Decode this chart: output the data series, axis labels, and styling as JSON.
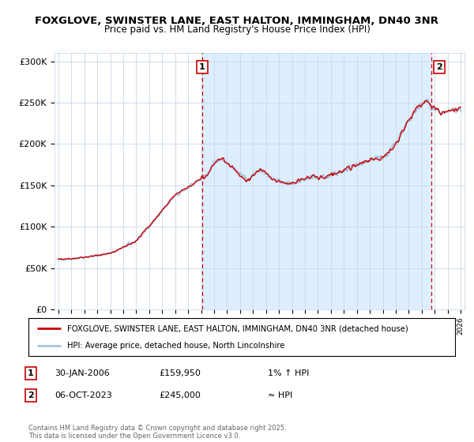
{
  "title_line1": "FOXGLOVE, SWINSTER LANE, EAST HALTON, IMMINGHAM, DN40 3NR",
  "title_line2": "Price paid vs. HM Land Registry's House Price Index (HPI)",
  "ylim": [
    0,
    310000
  ],
  "yticks": [
    0,
    50000,
    100000,
    150000,
    200000,
    250000,
    300000
  ],
  "ytick_labels": [
    "£0",
    "£50K",
    "£100K",
    "£150K",
    "£200K",
    "£250K",
    "£300K"
  ],
  "xmin_year": 1995,
  "xmax_year": 2026,
  "xticks": [
    1995,
    1996,
    1997,
    1998,
    1999,
    2000,
    2001,
    2002,
    2003,
    2004,
    2005,
    2006,
    2007,
    2008,
    2009,
    2010,
    2011,
    2012,
    2013,
    2014,
    2015,
    2016,
    2017,
    2018,
    2019,
    2020,
    2021,
    2022,
    2023,
    2024,
    2025,
    2026
  ],
  "sale1_x": 2006.08,
  "sale1_y": 159950,
  "sale1_label": "1",
  "sale2_x": 2023.76,
  "sale2_y": 245000,
  "sale2_label": "2",
  "hpi_color": "#aac4e0",
  "price_color": "#cc0000",
  "shade_color": "#ddeeff",
  "dashed_color": "#cc0000",
  "background_color": "#ffffff",
  "grid_color": "#c8d8e8",
  "legend_line1": "FOXGLOVE, SWINSTER LANE, EAST HALTON, IMMINGHAM, DN40 3NR (detached house)",
  "legend_line2": "HPI: Average price, detached house, North Lincolnshire",
  "annotation1_date": "30-JAN-2006",
  "annotation1_price": "£159,950",
  "annotation1_hpi": "1% ↑ HPI",
  "annotation2_date": "06-OCT-2023",
  "annotation2_price": "£245,000",
  "annotation2_hpi": "≈ HPI",
  "footer": "Contains HM Land Registry data © Crown copyright and database right 2025.\nThis data is licensed under the Open Government Licence v3.0."
}
